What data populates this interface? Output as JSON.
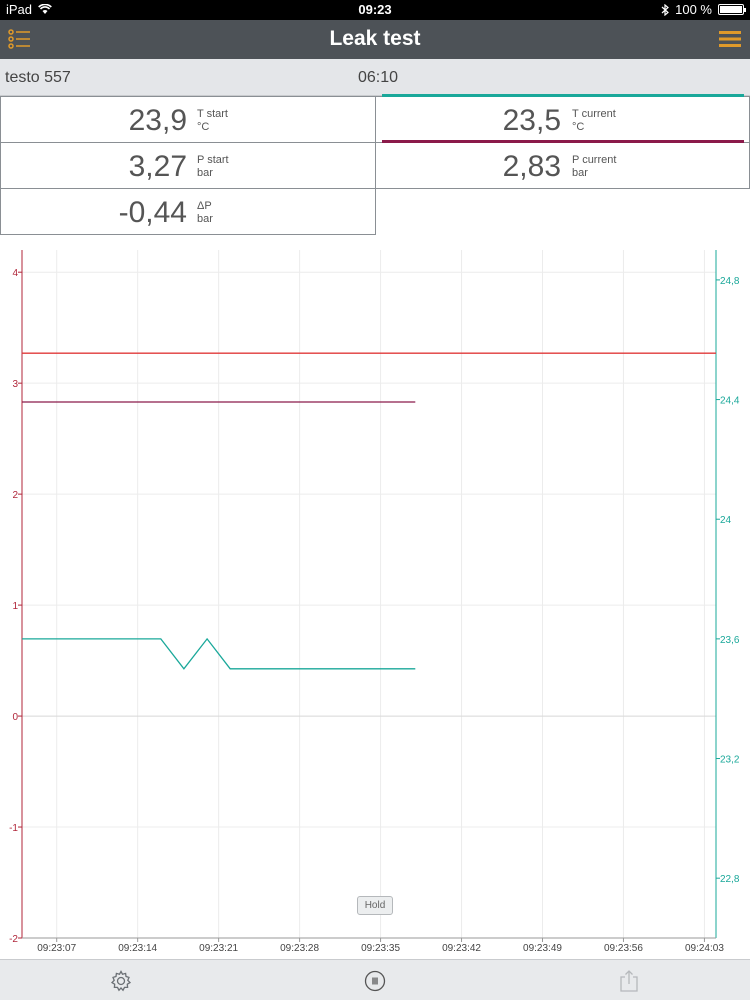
{
  "status_bar": {
    "device": "iPad",
    "time": "09:23",
    "battery": "100 %"
  },
  "header": {
    "title": "Leak test"
  },
  "device_bar": {
    "device": "testo 557",
    "elapsed": "06:10"
  },
  "readings": {
    "t_start": {
      "value": "23,9",
      "label": "T start",
      "unit": "°C"
    },
    "t_current": {
      "value": "23,5",
      "label": "T current",
      "unit": "°C"
    },
    "p_start": {
      "value": "3,27",
      "label": "P start",
      "unit": "bar"
    },
    "p_current": {
      "value": "2,83",
      "label": "P current",
      "unit": "bar"
    },
    "delta_p": {
      "value": "-0,44",
      "label": "ΔP",
      "unit": "bar"
    }
  },
  "colors": {
    "navbar": "#4d5257",
    "accent_orange": "#e09a2a",
    "temperature": "#1aa89a",
    "pressure_current": "#8b1a4a",
    "pressure_start": "#e0393a",
    "left_axis": "#b0263a"
  },
  "chart": {
    "hold_label": "Hold"
  },
  "chart_data": {
    "type": "line",
    "x_ticks": [
      "09:23:07",
      "09:23:14",
      "09:23:21",
      "09:23:28",
      "09:23:35",
      "09:23:42",
      "09:23:49",
      "09:23:56",
      "09:24:03"
    ],
    "y_left_ticks": [
      4,
      3,
      2,
      1,
      0,
      -1,
      -2
    ],
    "y_left_tick_labels": [
      "4",
      "3",
      "2",
      "1",
      "0",
      "-1",
      "-2"
    ],
    "y_left_range": [
      -2,
      4.2
    ],
    "y_right_ticks": [
      24.8,
      24.4,
      24,
      23.6,
      23.2,
      22.8
    ],
    "y_right_tick_labels": [
      "24,8",
      "24,4",
      "24",
      "23,6",
      "23,2",
      "22,8"
    ],
    "y_right_range": [
      22.6,
      24.9
    ],
    "x_range_seconds": [
      -3,
      57
    ],
    "series": [
      {
        "axis": "left",
        "color": "#e0393a",
        "points": [
          [
            -3,
            3.27
          ],
          [
            57,
            3.27
          ]
        ]
      },
      {
        "axis": "left",
        "color": "#8b1a4a",
        "points": [
          [
            -3,
            2.83
          ],
          [
            31,
            2.83
          ]
        ]
      },
      {
        "axis": "right",
        "color": "#1aa89a",
        "points": [
          [
            -3,
            23.6
          ],
          [
            9,
            23.6
          ],
          [
            11,
            23.5
          ],
          [
            13,
            23.6
          ],
          [
            15,
            23.5
          ],
          [
            31,
            23.5
          ]
        ]
      }
    ],
    "grid": true
  },
  "toolbar": {
    "settings": "settings",
    "pause": "pause",
    "export": "export"
  }
}
